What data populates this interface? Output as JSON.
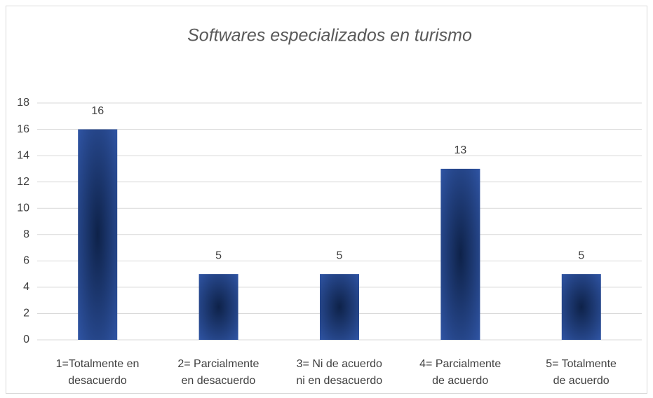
{
  "chart_data": {
    "type": "bar",
    "title": "Softwares especializados en turismo",
    "categories": [
      "1=Totalmente en\ndesacuerdo",
      "2= Parcialmente\nen desacuerdo",
      "3= Ni de acuerdo\nni en desacuerdo",
      "4= Parcialmente\nde acuerdo",
      "5= Totalmente\nde acuerdo"
    ],
    "values": [
      16,
      5,
      5,
      13,
      5
    ],
    "color": "#2f54a3",
    "ylim": [
      0,
      18
    ],
    "yticks": [
      0,
      2,
      4,
      6,
      8,
      10,
      12,
      14,
      16,
      18
    ],
    "grid": true
  }
}
